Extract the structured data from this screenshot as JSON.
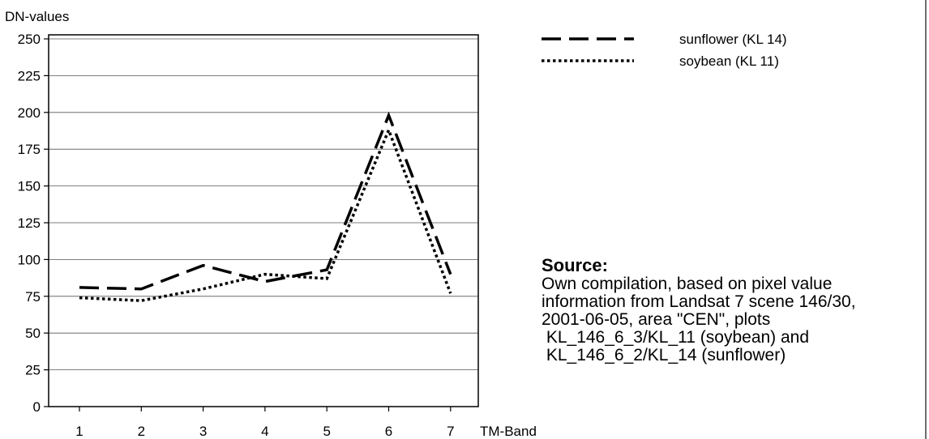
{
  "chart_data": {
    "type": "line",
    "ylabel": "DN-values",
    "xlabel": "TM-Band",
    "x": [
      1,
      2,
      3,
      4,
      5,
      6,
      7
    ],
    "ylim": [
      0,
      250
    ],
    "yticks": [
      0,
      25,
      50,
      75,
      100,
      125,
      150,
      175,
      200,
      225,
      250
    ],
    "xticks": [
      1,
      2,
      3,
      4,
      5,
      6,
      7
    ],
    "grid": "horizontal",
    "legend": "top-right",
    "series": [
      {
        "name": "sunflower (KL 14)",
        "style": "dashed",
        "color": "#000000",
        "values": [
          81,
          80,
          96,
          85,
          93,
          198,
          90
        ]
      },
      {
        "name": "soybean (KL 11)",
        "style": "dotted",
        "color": "#000000",
        "values": [
          74,
          72,
          80,
          90,
          87,
          188,
          77
        ]
      }
    ]
  },
  "source": {
    "title": "Source:",
    "lines": [
      "Own compilation, based on pixel value",
      "information from Landsat 7 scene 146/30,",
      "2001-06-05, area \"CEN\", plots",
      " KL_146_6_3/KL_11 (soybean) and",
      " KL_146_6_2/KL_14 (sunflower)"
    ]
  }
}
